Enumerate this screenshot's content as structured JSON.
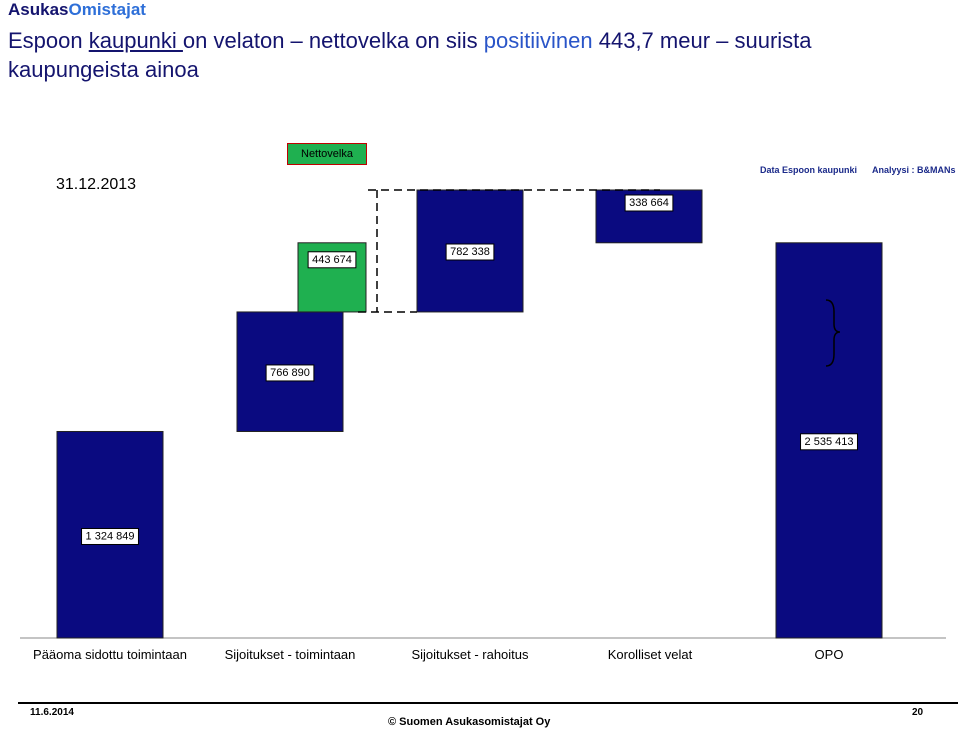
{
  "logo": {
    "part1": "Asukas",
    "part2": "Omistajat"
  },
  "headline": {
    "p1": "Espoon ",
    "p2": "kaupunki ",
    "p3": "on velaton – nettovelka on siis ",
    "p4": "positiivinen",
    "p5": " 443,7 meur – suurista kaupungeista ainoa"
  },
  "date_label": "31.12.2013",
  "source_data": "Data Espoon kaupunki",
  "source_analysis": "Analyysi : B&MANs",
  "legend_label": "Nettovelka",
  "colors": {
    "bar": "#0a0a80",
    "net": "#1fb050",
    "label_border": "#000000"
  },
  "chart_data": {
    "type": "bar",
    "subtype": "waterfall",
    "categories": [
      "Pääoma sidottu toimintaan",
      "Sijoitukset - toimintaan",
      "Sijoitukset - rahoitus",
      "Korolliset velat",
      "OPO"
    ],
    "bars": [
      {
        "category": "Pääoma sidottu toimintaan",
        "start": 0,
        "end": 1324849,
        "label": "1 324 849",
        "color": "#0a0a80"
      },
      {
        "category": "Sijoitukset - toimintaan",
        "start": 1324849,
        "end": 2091739,
        "label": "766 890",
        "color": "#0a0a80"
      },
      {
        "category": "Sijoitukset - rahoitus",
        "start": 2091739,
        "end": 2874077,
        "label": "782 338",
        "color": "#0a0a80"
      },
      {
        "category": "Korolliset velat",
        "start": 2874077,
        "end": 2535413,
        "label": "338 664",
        "color": "#0a0a80"
      },
      {
        "category": "OPO",
        "start": 0,
        "end": 2535413,
        "label": "2 535 413",
        "color": "#0a0a80"
      },
      {
        "category": "Nettovelka",
        "start": 2091739,
        "end": 2535413,
        "label": "443 674",
        "color": "#1fb050"
      }
    ],
    "xlabel": "",
    "ylabel": "",
    "grid": false,
    "legend": "top-center"
  },
  "footer": {
    "date": "11.6.2014",
    "copyright": "© Suomen Asukasomistajat Oy",
    "page": "20"
  }
}
